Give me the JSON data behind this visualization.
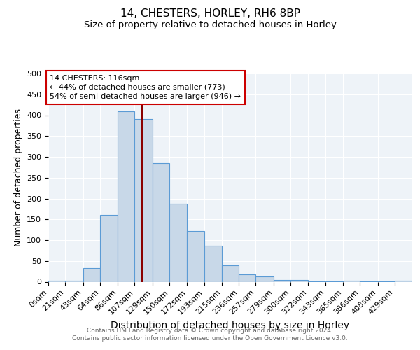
{
  "title": "14, CHESTERS, HORLEY, RH6 8BP",
  "subtitle": "Size of property relative to detached houses in Horley",
  "xlabel": "Distribution of detached houses by size in Horley",
  "ylabel": "Number of detached properties",
  "bar_labels": [
    "0sqm",
    "21sqm",
    "43sqm",
    "64sqm",
    "86sqm",
    "107sqm",
    "129sqm",
    "150sqm",
    "172sqm",
    "193sqm",
    "215sqm",
    "236sqm",
    "257sqm",
    "279sqm",
    "300sqm",
    "322sqm",
    "343sqm",
    "365sqm",
    "386sqm",
    "408sqm",
    "429sqm"
  ],
  "bar_heights": [
    3,
    3,
    32,
    160,
    410,
    390,
    285,
    188,
    122,
    86,
    40,
    18,
    12,
    5,
    4,
    1,
    1,
    3,
    1,
    1,
    3
  ],
  "bar_color": "#c8d8e8",
  "bar_edge_color": "#5b9bd5",
  "bin_edges": [
    0,
    21,
    43,
    64,
    86,
    107,
    129,
    150,
    172,
    193,
    215,
    236,
    257,
    279,
    300,
    322,
    343,
    365,
    386,
    408,
    429,
    450
  ],
  "vline_x": 116,
  "vline_color": "#8b0000",
  "annotation_line1": "14 CHESTERS: 116sqm",
  "annotation_line2": "← 44% of detached houses are smaller (773)",
  "annotation_line3": "54% of semi-detached houses are larger (946) →",
  "annotation_border_color": "#cc0000",
  "ylim": [
    0,
    500
  ],
  "xlim": [
    0,
    450
  ],
  "background_color": "#eef3f8",
  "footer_line1": "Contains HM Land Registry data © Crown copyright and database right 2024.",
  "footer_line2": "Contains public sector information licensed under the Open Government Licence v3.0.",
  "title_fontsize": 11,
  "subtitle_fontsize": 9.5,
  "xlabel_fontsize": 10,
  "ylabel_fontsize": 9,
  "tick_fontsize": 8,
  "annotation_fontsize": 8,
  "footer_fontsize": 6.5
}
